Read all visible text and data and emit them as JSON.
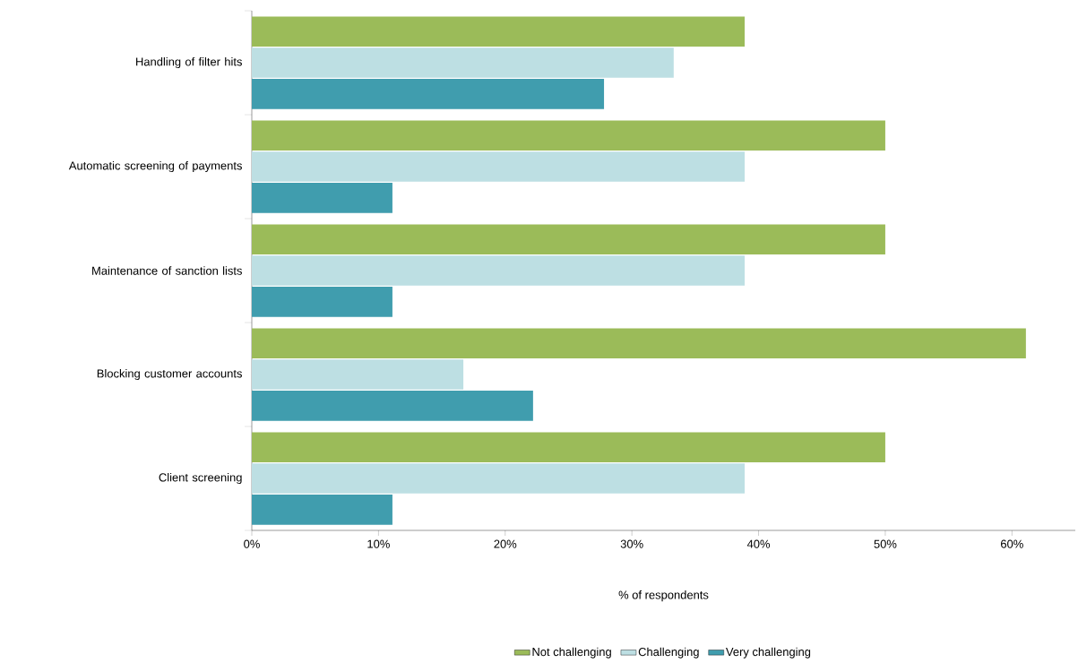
{
  "chart_data": {
    "type": "bar",
    "orientation": "horizontal",
    "xlabel": "% of respondents",
    "categories": [
      "Handling of filter hits",
      "Automatic screening of payments",
      "Maintenance of sanction lists",
      "Blocking customer accounts",
      "Client screening"
    ],
    "series": [
      {
        "name": "Not challenging",
        "color": "#9bbb59",
        "values": [
          38.9,
          50,
          50,
          61.1,
          50
        ]
      },
      {
        "name": "Challenging",
        "color": "#bddfe3",
        "values": [
          33.3,
          38.9,
          38.9,
          16.7,
          38.9
        ]
      },
      {
        "name": "Very challenging",
        "color": "#409dae",
        "values": [
          27.8,
          11.1,
          11.1,
          22.2,
          11.1
        ]
      }
    ],
    "xlim": [
      0,
      65
    ],
    "xticks": [
      {
        "value": 0,
        "label": "0%"
      },
      {
        "value": 10,
        "label": "10%"
      },
      {
        "value": 20,
        "label": "20%"
      },
      {
        "value": 30,
        "label": "30%"
      },
      {
        "value": 40,
        "label": "40%"
      },
      {
        "value": 50,
        "label": "50%"
      },
      {
        "value": 60,
        "label": "60%"
      }
    ],
    "legend": "bottom"
  }
}
